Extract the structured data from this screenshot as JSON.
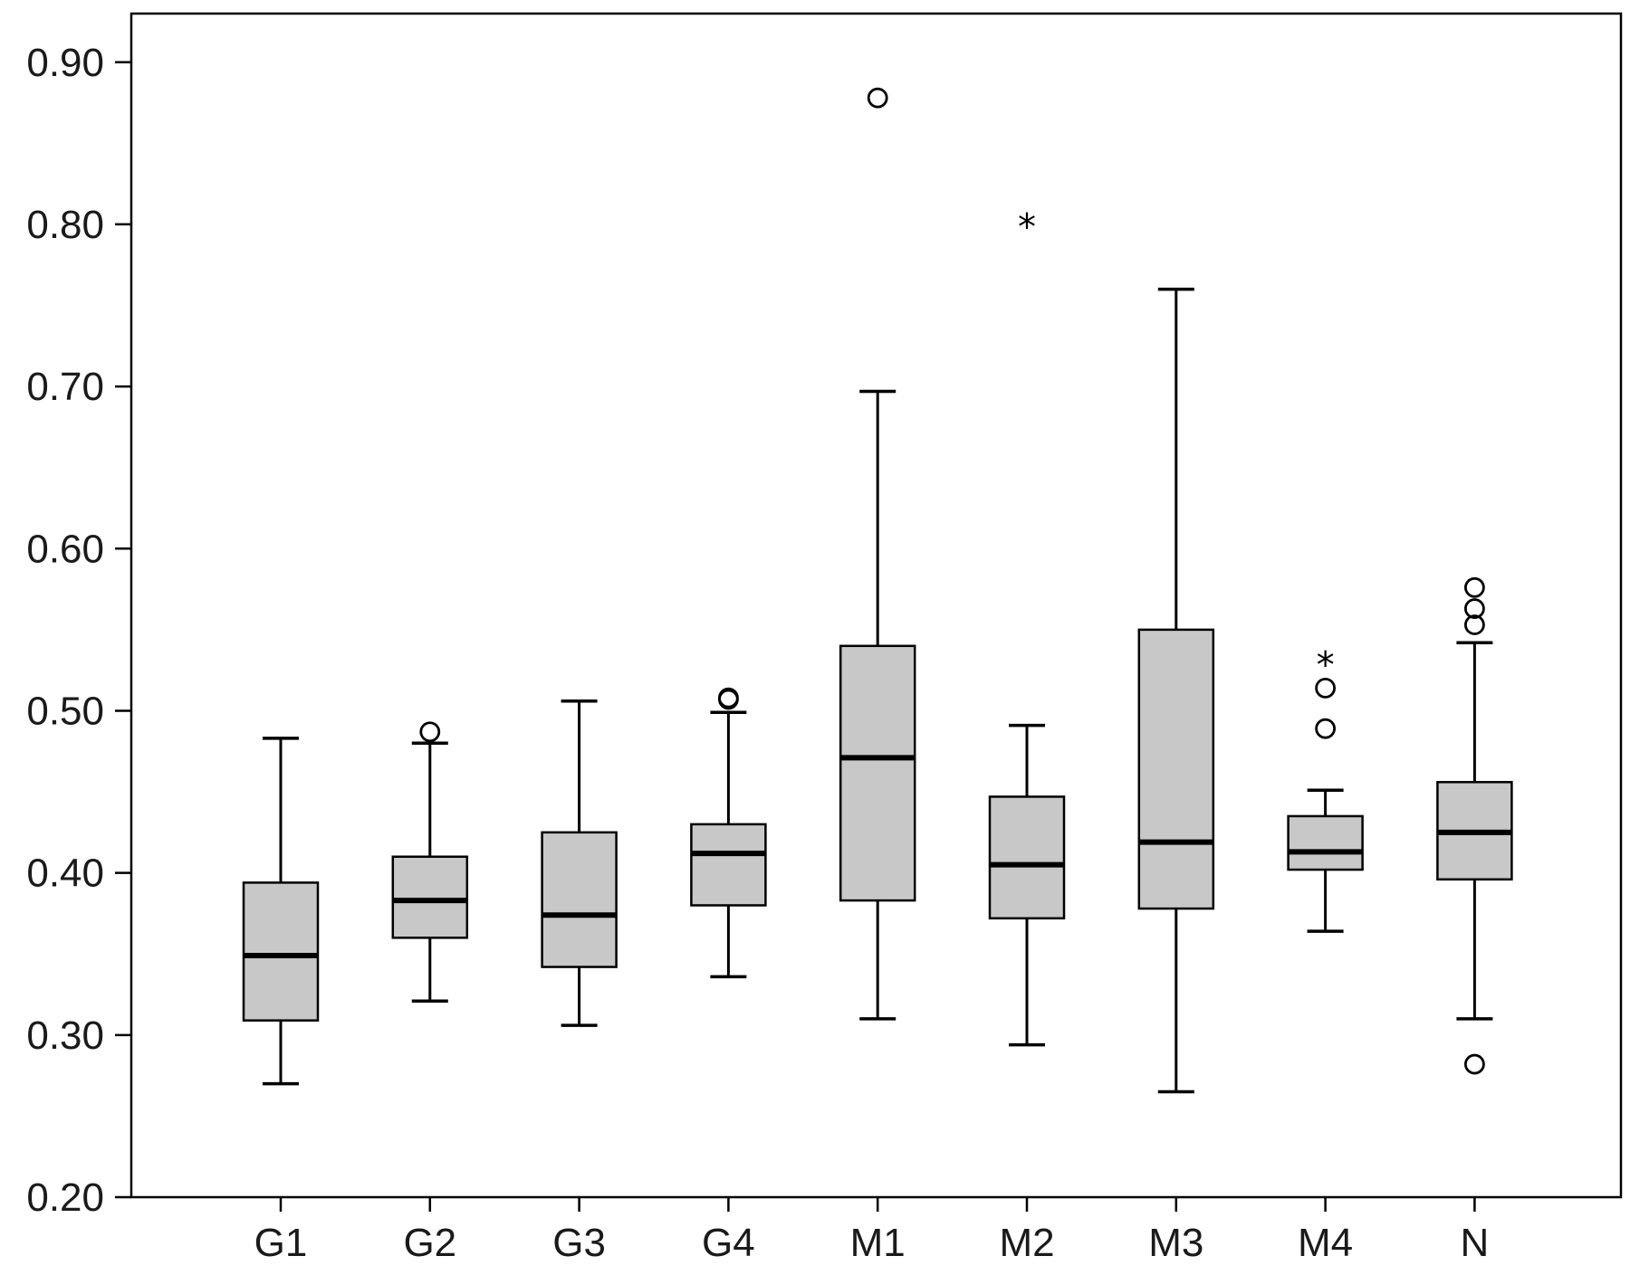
{
  "chart_data": {
    "type": "boxplot",
    "title": "",
    "xlabel": "",
    "ylabel": "",
    "ylim": [
      0.2,
      0.93
    ],
    "yticks": [
      0.2,
      0.3,
      0.4,
      0.5,
      0.6,
      0.7,
      0.8,
      0.9
    ],
    "ytick_labels": [
      "0.20",
      "0.30",
      "0.40",
      "0.50",
      "0.60",
      "0.70",
      "0.80",
      "0.90"
    ],
    "grid": false,
    "box_color": "#c8c8c8",
    "categories": [
      "G1",
      "G2",
      "G3",
      "G4",
      "M1",
      "M2",
      "M3",
      "M4",
      "N"
    ],
    "boxes": [
      {
        "category": "G1",
        "whisker_low": 0.27,
        "q1": 0.309,
        "median": 0.349,
        "q3": 0.394,
        "whisker_high": 0.483,
        "outliers": [],
        "extremes": []
      },
      {
        "category": "G2",
        "whisker_low": 0.321,
        "q1": 0.36,
        "median": 0.383,
        "q3": 0.41,
        "whisker_high": 0.48,
        "outliers": [
          0.487
        ],
        "extremes": []
      },
      {
        "category": "G3",
        "whisker_low": 0.306,
        "q1": 0.342,
        "median": 0.374,
        "q3": 0.425,
        "whisker_high": 0.506,
        "outliers": [],
        "extremes": []
      },
      {
        "category": "G4",
        "whisker_low": 0.336,
        "q1": 0.38,
        "median": 0.412,
        "q3": 0.43,
        "whisker_high": 0.499,
        "outliers": [
          0.507,
          0.508
        ],
        "extremes": []
      },
      {
        "category": "M1",
        "whisker_low": 0.31,
        "q1": 0.383,
        "median": 0.471,
        "q3": 0.54,
        "whisker_high": 0.697,
        "outliers": [
          0.878
        ],
        "extremes": []
      },
      {
        "category": "M2",
        "whisker_low": 0.294,
        "q1": 0.372,
        "median": 0.405,
        "q3": 0.447,
        "whisker_high": 0.491,
        "outliers": [],
        "extremes": [
          0.803
        ]
      },
      {
        "category": "M3",
        "whisker_low": 0.265,
        "q1": 0.378,
        "median": 0.419,
        "q3": 0.55,
        "whisker_high": 0.76,
        "outliers": [],
        "extremes": []
      },
      {
        "category": "M4",
        "whisker_low": 0.364,
        "q1": 0.402,
        "median": 0.413,
        "q3": 0.435,
        "whisker_high": 0.451,
        "outliers": [
          0.489,
          0.514
        ],
        "extremes": [
          0.533
        ]
      },
      {
        "category": "N",
        "whisker_low": 0.31,
        "q1": 0.396,
        "median": 0.425,
        "q3": 0.456,
        "whisker_high": 0.542,
        "outliers": [
          0.282,
          0.553,
          0.563,
          0.576
        ],
        "extremes": []
      }
    ]
  }
}
